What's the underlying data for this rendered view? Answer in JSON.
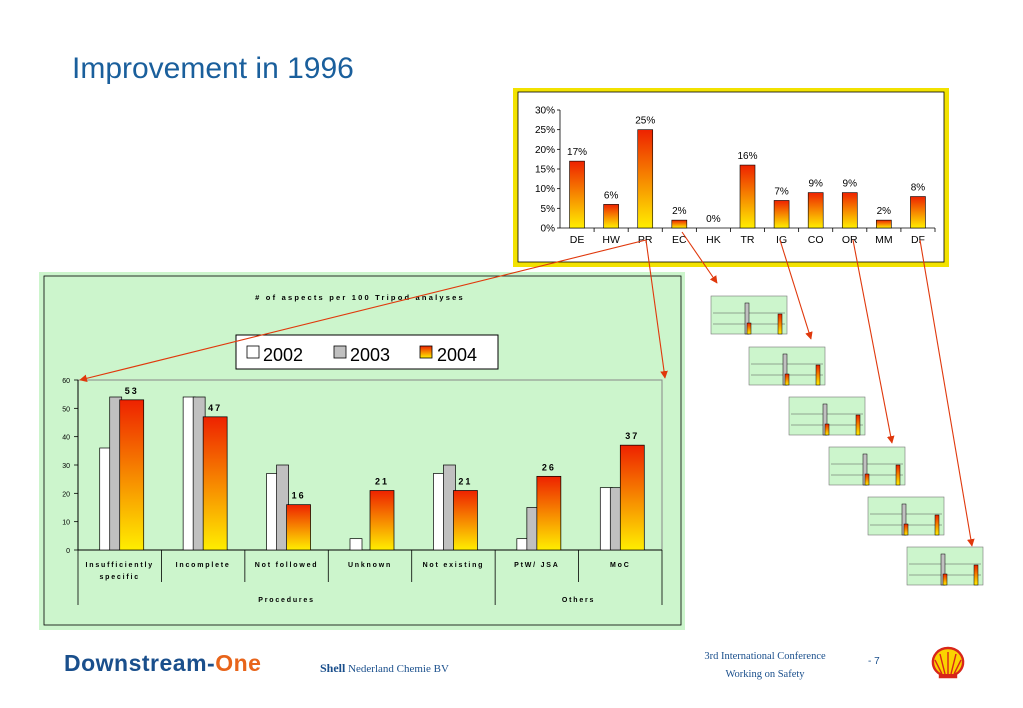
{
  "slide": {
    "title": "Improvement in 1996",
    "footer_brand_main": "Downstream-",
    "footer_brand_accent": "One",
    "footer_company_bold": "Shell",
    "footer_company_rest": " Nederland Chemie BV",
    "footer_conf_line1": "3rd International Conference",
    "footer_conf_line2": "Working on Safety",
    "page_number": "- 7"
  },
  "colors": {
    "title": "#1a5f9c",
    "small_chart_border": "#f2e200",
    "big_chart_bg": "#ccf5cc",
    "arrow": "#e0380c",
    "bar_top": "#ee2200",
    "bar_bottom": "#ffee00",
    "series_2002": "#ffffff",
    "series_2003": "#c0c0c0"
  },
  "chart_data": [
    {
      "type": "bar",
      "categories": [
        "DE",
        "HW",
        "PR",
        "EC",
        "HK",
        "TR",
        "IG",
        "CO",
        "OR",
        "MM",
        "DF"
      ],
      "values": [
        17,
        6,
        25,
        2,
        0,
        16,
        7,
        9,
        9,
        2,
        8
      ],
      "value_labels": [
        "17%",
        "6%",
        "25%",
        "2%",
        "0%",
        "16%",
        "7%",
        "9%",
        "9%",
        "2%",
        "8%"
      ],
      "y_ticks": [
        "0%",
        "5%",
        "10%",
        "15%",
        "20%",
        "25%",
        "30%"
      ],
      "ylim": [
        0,
        30
      ],
      "bar_fill": "gradient red-to-yellow",
      "grid": false
    },
    {
      "type": "bar",
      "title": "# of aspects per 100 Tripod analyses",
      "categories": [
        "Insufficiently specific",
        "Incomplete",
        "Not followed",
        "Unknown",
        "Not existing",
        "PtW/ JSA",
        "MoC"
      ],
      "groups": [
        {
          "label": "Procedures",
          "span": 5
        },
        {
          "label": "Others",
          "span": 2
        }
      ],
      "series": [
        {
          "name": "2002",
          "values": [
            36,
            54,
            27,
            4,
            27,
            4,
            22
          ],
          "color": "#ffffff"
        },
        {
          "name": "2003",
          "values": [
            54,
            54,
            30,
            0,
            30,
            15,
            22
          ],
          "color": "#c0c0c0"
        },
        {
          "name": "2004",
          "values": [
            53,
            47,
            16,
            21,
            21,
            26,
            37
          ],
          "color": "gradient red-to-yellow"
        }
      ],
      "value_labels_2004": [
        "53",
        "47",
        "16",
        "21",
        "21",
        "26",
        "37"
      ],
      "y_ticks": [
        "0",
        "10",
        "20",
        "30",
        "40",
        "50",
        "60"
      ],
      "ylim": [
        0,
        60
      ],
      "legend": "top-center",
      "grid": false
    }
  ]
}
